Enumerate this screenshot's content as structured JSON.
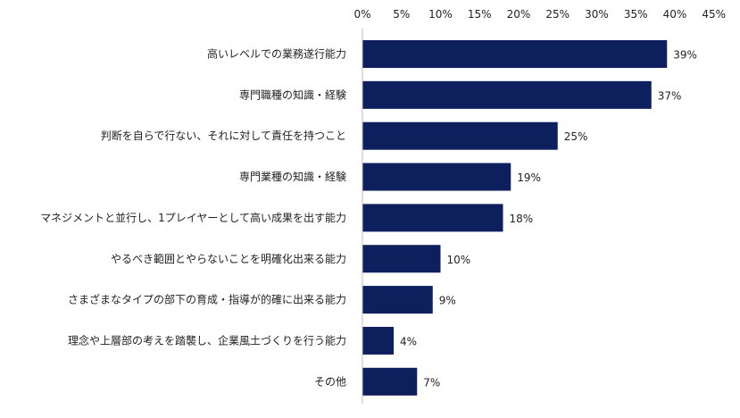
{
  "chart_data": {
    "type": "bar",
    "orientation": "horizontal",
    "categories": [
      "高いレベルでの業務遂行能力",
      "専門職種の知識・経験",
      "判断を自らで行ない、それに対して責任を持つこと",
      "専門業種の知識・経験",
      "マネジメントと並行し、1プレイヤーとして高い成果を出す能力",
      "やるべき範囲とやらないことを明確化出来る能力",
      "さまざまなタイプの部下の育成・指導が的確に出来る能力",
      "理念や上層部の考えを踏襲し、企業風土づくりを行う能力",
      "その他"
    ],
    "values": [
      39,
      37,
      25,
      19,
      18,
      10,
      9,
      4,
      7
    ],
    "value_labels": [
      "39%",
      "37%",
      "25%",
      "19%",
      "18%",
      "10%",
      "9%",
      "4%",
      "7%"
    ],
    "x_ticks": [
      0,
      5,
      10,
      15,
      20,
      25,
      30,
      35,
      40,
      45
    ],
    "x_tick_labels": [
      "0%",
      "5%",
      "10%",
      "15%",
      "20%",
      "25%",
      "30%",
      "35%",
      "40%",
      "45%"
    ],
    "xlim": [
      0,
      45
    ],
    "axis_position": "top",
    "grid": false,
    "legend": "none",
    "bar_color": "#0d1f5c"
  }
}
